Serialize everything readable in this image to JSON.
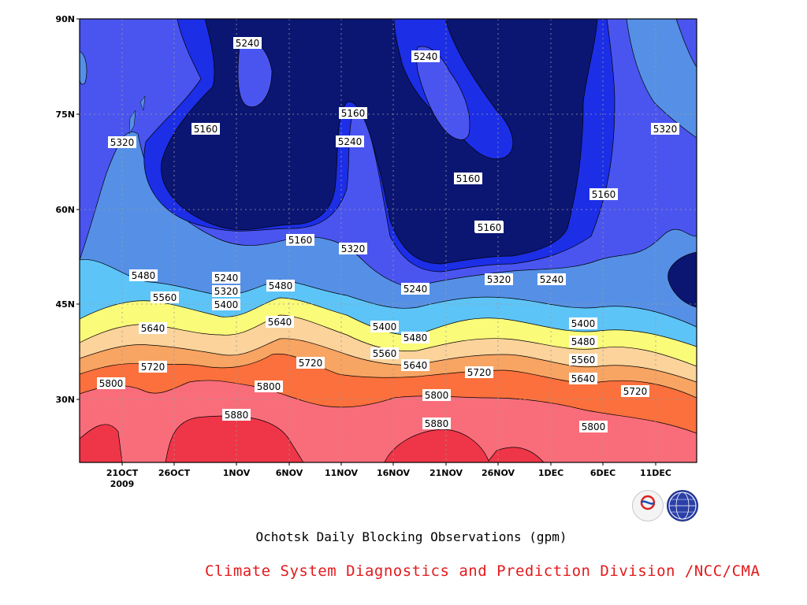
{
  "chart_data": {
    "type": "contour",
    "caption": "Ochotsk Daily Blocking Observations (gpm)",
    "credit": "Climate System Diagnostics and Prediction Division /NCC/CMA",
    "logos": [
      "BCC",
      "NCC"
    ],
    "x_ticks": [
      "21OCT",
      "26OCT",
      "1NOV",
      "6NOV",
      "11NOV",
      "16NOV",
      "21NOV",
      "26NOV",
      "1DEC",
      "6DEC",
      "11DEC"
    ],
    "x_year_label": "2009",
    "y_ticks": [
      "90N",
      "75N",
      "60N",
      "45N",
      "30N"
    ],
    "contour_levels": [
      5160,
      5240,
      5320,
      5400,
      5480,
      5560,
      5640,
      5720,
      5800,
      5880
    ],
    "colors": {
      "lt5160": "#0b1673",
      "5160": "#1c2ee6",
      "5240": "#4a55f0",
      "5320": "#5590e6",
      "5400": "#5dc4f7",
      "5480": "#fbfb7a",
      "5560": "#fbd39b",
      "5640": "#f8a463",
      "5720": "#fb703c",
      "5800": "#f96d7b",
      "5880": "#ef3648"
    },
    "labels": [
      {
        "text": "5240"
      },
      {
        "text": "5240"
      },
      {
        "text": "5160"
      },
      {
        "text": "5240"
      },
      {
        "text": "5160"
      },
      {
        "text": "5320"
      },
      {
        "text": "5160"
      },
      {
        "text": "5160"
      },
      {
        "text": "5160"
      },
      {
        "text": "5320"
      },
      {
        "text": "5160"
      },
      {
        "text": "5320"
      },
      {
        "text": "5160"
      },
      {
        "text": "5480"
      },
      {
        "text": "5240"
      },
      {
        "text": "5320"
      },
      {
        "text": "5400"
      },
      {
        "text": "5480"
      },
      {
        "text": "5240"
      },
      {
        "text": "5320"
      },
      {
        "text": "5240"
      },
      {
        "text": "5560"
      },
      {
        "text": "5640"
      },
      {
        "text": "5400"
      },
      {
        "text": "5480"
      },
      {
        "text": "5400"
      },
      {
        "text": "5560"
      },
      {
        "text": "5480"
      },
      {
        "text": "5640"
      },
      {
        "text": "5560"
      },
      {
        "text": "5720"
      },
      {
        "text": "5720"
      },
      {
        "text": "5640"
      },
      {
        "text": "5720"
      },
      {
        "text": "5640"
      },
      {
        "text": "5800"
      },
      {
        "text": "5800"
      },
      {
        "text": "5800"
      },
      {
        "text": "5720"
      },
      {
        "text": "5880"
      },
      {
        "text": "5880"
      },
      {
        "text": "5800"
      }
    ]
  }
}
